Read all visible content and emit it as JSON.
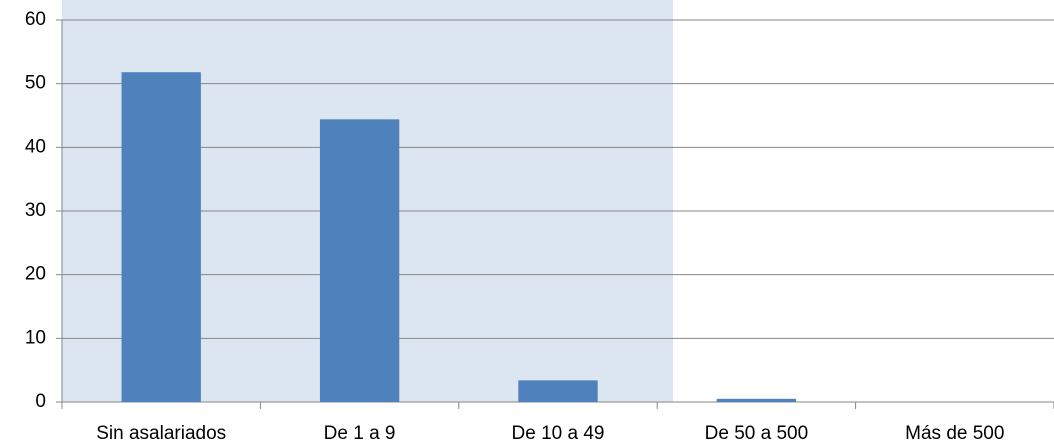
{
  "chart_data": {
    "type": "bar",
    "categories": [
      "Sin asalariados",
      "De 1 a 9",
      "De 10 a 49",
      "De 50 a 500",
      "Más de 500"
    ],
    "values": [
      51.8,
      44.4,
      3.4,
      0.5,
      0
    ],
    "color": "#4f81bd",
    "ylim": [
      0,
      60
    ],
    "yticks": [
      0,
      10,
      20,
      30,
      40,
      50,
      60
    ],
    "grid": true
  }
}
